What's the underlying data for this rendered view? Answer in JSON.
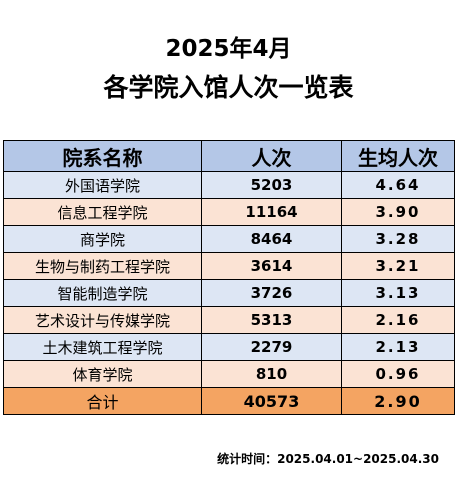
{
  "title_line1": "2025年4月",
  "title_line2": "各学院入馆人次一览表",
  "table": {
    "headers": [
      "院系名称",
      "人次",
      "生均人次"
    ],
    "rows": [
      {
        "name": "外国语学院",
        "visits": "5203",
        "avg": "4.64"
      },
      {
        "name": "信息工程学院",
        "visits": "11164",
        "avg": "3.90"
      },
      {
        "name": "商学院",
        "visits": "8464",
        "avg": "3.28"
      },
      {
        "name": "生物与制药工程学院",
        "visits": "3614",
        "avg": "3.21"
      },
      {
        "name": "智能制造学院",
        "visits": "3726",
        "avg": "3.13"
      },
      {
        "name": "艺术设计与传媒学院",
        "visits": "5313",
        "avg": "2.16"
      },
      {
        "name": "土木建筑工程学院",
        "visits": "2279",
        "avg": "2.13"
      },
      {
        "name": "体育学院",
        "visits": "810",
        "avg": "0.96"
      }
    ],
    "total": {
      "name": "合计",
      "visits": "40573",
      "avg": "2.90"
    }
  },
  "footer": "统计时间：2025.04.01~2025.04.30",
  "colors": {
    "header_bg": "#b4c7e7",
    "row_blue": "#dde6f4",
    "row_peach": "#fbe3d4",
    "total_bg": "#f4a462"
  }
}
